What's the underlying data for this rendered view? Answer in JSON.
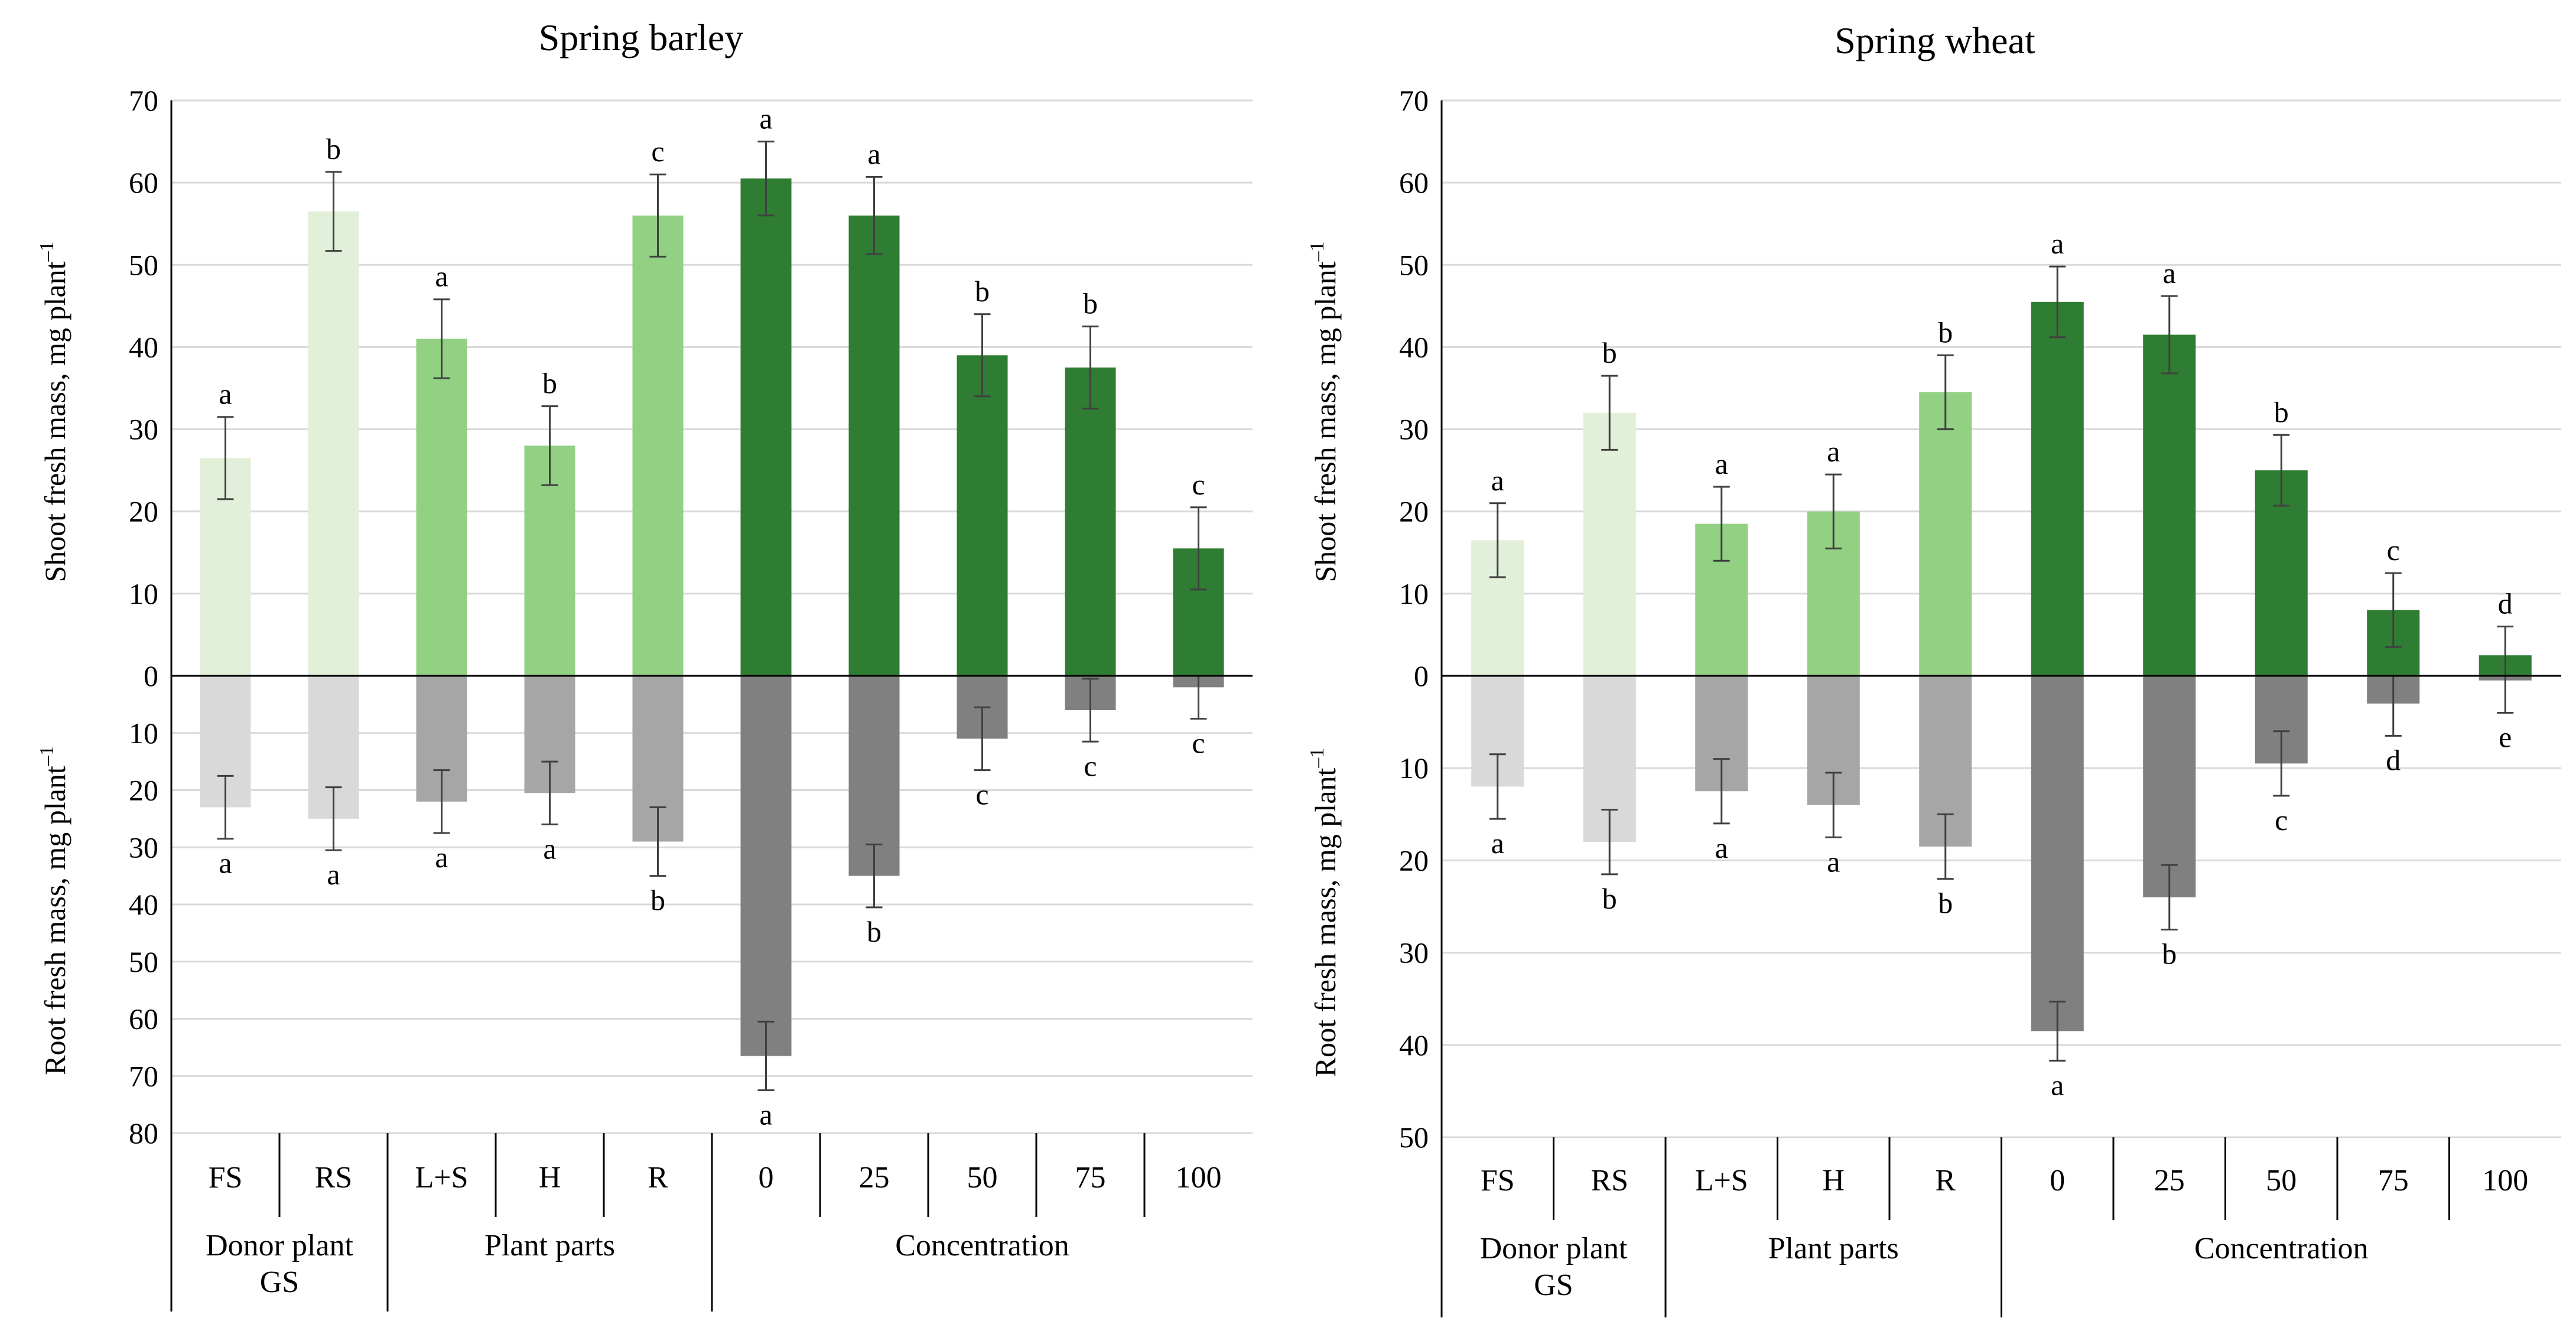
{
  "chart_data": [
    {
      "type": "bar",
      "title": "Spring barley",
      "ylabel_top": "Shoot fresh  mass,  mg plant",
      "ylabel_bottom": "Root fresh  mass,  mg plant",
      "ylabel_superscript": "–1",
      "shoot_ylim": [
        0,
        70
      ],
      "shoot_ticks": [
        0,
        10,
        20,
        30,
        40,
        50,
        60,
        70
      ],
      "root_ylim": [
        0,
        80
      ],
      "root_ticks": [
        10,
        20,
        30,
        40,
        50,
        60,
        70,
        80
      ],
      "grid": true,
      "categories": [
        "FS",
        "RS",
        "L+S",
        "H",
        "R",
        "0",
        "25",
        "50",
        "75",
        "100"
      ],
      "groups": [
        {
          "label_lines": [
            "Donor plant",
            "GS"
          ],
          "start": 0,
          "end": 1
        },
        {
          "label_lines": [
            "Plant parts"
          ],
          "start": 2,
          "end": 4
        },
        {
          "label_lines": [
            "Concentration"
          ],
          "start": 5,
          "end": 9
        }
      ],
      "shoot": {
        "values": [
          26.5,
          56.5,
          41.0,
          28.0,
          56.0,
          60.5,
          56.0,
          39.0,
          37.5,
          15.5
        ],
        "errors": [
          5.0,
          4.8,
          4.8,
          4.8,
          5.0,
          4.5,
          4.7,
          5.0,
          5.0,
          5.0
        ],
        "letters": [
          "a",
          "b",
          "a",
          "b",
          "c",
          "a",
          "a",
          "b",
          "b",
          "c"
        ],
        "colors": [
          "#e2f0d9",
          "#e2f0d9",
          "#92d083",
          "#92d083",
          "#92d083",
          "#2e7d32",
          "#2e7d32",
          "#2e7d32",
          "#2e7d32",
          "#2e7d32"
        ]
      },
      "root": {
        "values": [
          23.0,
          25.0,
          22.0,
          20.5,
          29.0,
          66.5,
          35.0,
          11.0,
          6.0,
          2.0
        ],
        "errors": [
          5.5,
          5.5,
          5.5,
          5.5,
          6.0,
          6.0,
          5.5,
          5.5,
          5.5,
          5.5
        ],
        "letters": [
          "a",
          "a",
          "a",
          "a",
          "b",
          "a",
          "b",
          "c",
          "c",
          "c"
        ],
        "colors": [
          "#d9d9d9",
          "#d9d9d9",
          "#a6a6a6",
          "#a6a6a6",
          "#a6a6a6",
          "#808080",
          "#808080",
          "#808080",
          "#808080",
          "#808080"
        ]
      }
    },
    {
      "type": "bar",
      "title": "Spring wheat",
      "ylabel_top": "Shoot fresh  mass,  mg plant",
      "ylabel_bottom": "Root fresh  mass,  mg plant",
      "ylabel_superscript": "–1",
      "shoot_ylim": [
        0,
        70
      ],
      "shoot_ticks": [
        0,
        10,
        20,
        30,
        40,
        50,
        60,
        70
      ],
      "root_ylim": [
        0,
        50
      ],
      "root_ticks": [
        10,
        20,
        30,
        40,
        50
      ],
      "grid": true,
      "categories": [
        "FS",
        "RS",
        "L+S",
        "H",
        "R",
        "0",
        "25",
        "50",
        "75",
        "100"
      ],
      "groups": [
        {
          "label_lines": [
            "Donor plant",
            "GS"
          ],
          "start": 0,
          "end": 1
        },
        {
          "label_lines": [
            "Plant parts"
          ],
          "start": 2,
          "end": 4
        },
        {
          "label_lines": [
            "Concentration"
          ],
          "start": 5,
          "end": 9
        }
      ],
      "shoot": {
        "values": [
          16.5,
          32.0,
          18.5,
          20.0,
          34.5,
          45.5,
          41.5,
          25.0,
          8.0,
          2.5
        ],
        "errors": [
          4.5,
          4.5,
          4.5,
          4.5,
          4.5,
          4.3,
          4.7,
          4.3,
          4.5,
          3.5
        ],
        "letters": [
          "a",
          "b",
          "a",
          "a",
          "b",
          "a",
          "a",
          "b",
          "c",
          "d"
        ],
        "colors": [
          "#e2f0d9",
          "#e2f0d9",
          "#92d083",
          "#92d083",
          "#92d083",
          "#2e7d32",
          "#2e7d32",
          "#2e7d32",
          "#2e7d32",
          "#2e7d32"
        ]
      },
      "root": {
        "values": [
          12.0,
          18.0,
          12.5,
          14.0,
          18.5,
          38.5,
          24.0,
          9.5,
          3.0,
          0.5
        ],
        "errors": [
          3.5,
          3.5,
          3.5,
          3.5,
          3.5,
          3.2,
          3.5,
          3.5,
          3.5,
          3.5
        ],
        "letters": [
          "a",
          "b",
          "a",
          "a",
          "b",
          "a",
          "b",
          "c",
          "d",
          "e"
        ],
        "colors": [
          "#d9d9d9",
          "#d9d9d9",
          "#a6a6a6",
          "#a6a6a6",
          "#a6a6a6",
          "#808080",
          "#808080",
          "#808080",
          "#808080",
          "#808080"
        ]
      }
    }
  ]
}
